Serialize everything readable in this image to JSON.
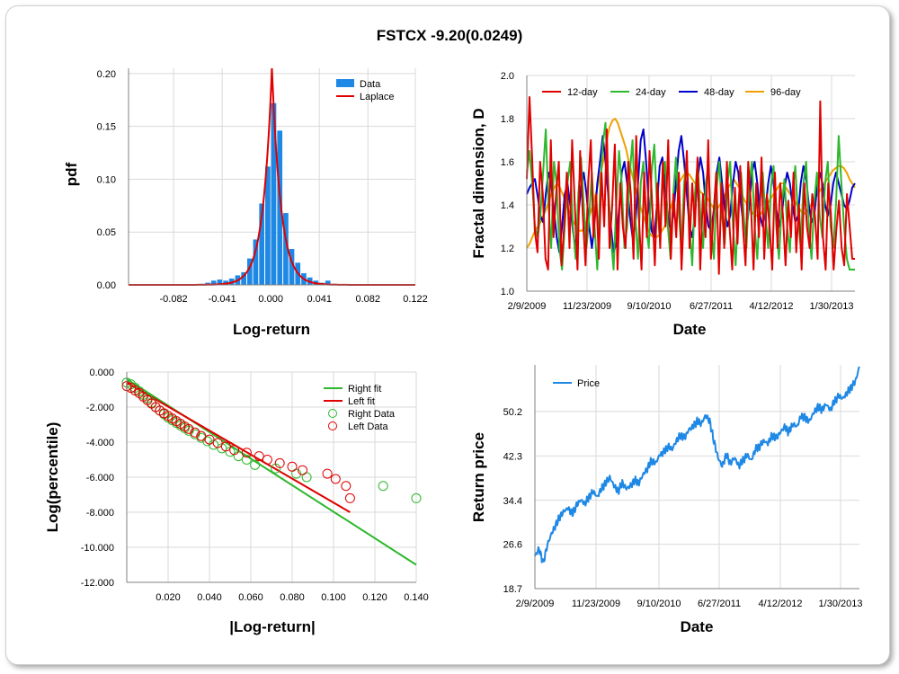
{
  "title": "FSTCX -9.20(0.0249)",
  "colors": {
    "bar": "#1e88e5",
    "laplace": "#e00000",
    "green": "#2db82d",
    "red": "#e00000",
    "blue": "#0000cc",
    "orange": "#f0a000",
    "price": "#1e88e5",
    "grid": "#d9d9d9",
    "axis": "#808080"
  },
  "chart_data": [
    {
      "type": "bar",
      "name": "histogram",
      "xlabel": "Log-return",
      "ylabel": "pdf",
      "xlim": [
        -0.12,
        0.122
      ],
      "ylim": [
        0,
        0.205
      ],
      "xticks": [
        -0.082,
        -0.041,
        0.0,
        0.041,
        0.082,
        0.122
      ],
      "xtick_labels": [
        "-0.082",
        "-0.041",
        "0.000",
        "0.041",
        "0.082",
        "0.122"
      ],
      "yticks": [
        0,
        0.05,
        0.1,
        0.15,
        0.2
      ],
      "ytick_labels": [
        "0.00",
        "0.05",
        "0.10",
        "0.15",
        "0.20"
      ],
      "legend": [
        "Data",
        "Laplace"
      ],
      "bin_width": 0.00507,
      "bins": [
        {
          "x": -0.0583,
          "y": 0.001
        },
        {
          "x": -0.0532,
          "y": 0.002
        },
        {
          "x": -0.0482,
          "y": 0.004
        },
        {
          "x": -0.0431,
          "y": 0.005
        },
        {
          "x": -0.038,
          "y": 0.004
        },
        {
          "x": -0.033,
          "y": 0.006
        },
        {
          "x": -0.0279,
          "y": 0.009
        },
        {
          "x": -0.0228,
          "y": 0.012
        },
        {
          "x": -0.0177,
          "y": 0.025
        },
        {
          "x": -0.0127,
          "y": 0.043
        },
        {
          "x": -0.0076,
          "y": 0.077
        },
        {
          "x": -0.0025,
          "y": 0.112
        },
        {
          "x": 0.0025,
          "y": 0.172
        },
        {
          "x": 0.0076,
          "y": 0.146
        },
        {
          "x": 0.0127,
          "y": 0.068
        },
        {
          "x": 0.0177,
          "y": 0.034
        },
        {
          "x": 0.0228,
          "y": 0.021
        },
        {
          "x": 0.0279,
          "y": 0.011
        },
        {
          "x": 0.033,
          "y": 0.007
        },
        {
          "x": 0.038,
          "y": 0.004
        },
        {
          "x": 0.0431,
          "y": 0.002
        },
        {
          "x": 0.0482,
          "y": 0.004
        },
        {
          "x": 0.0532,
          "y": 0.001
        }
      ],
      "laplace": {
        "mu": 0.001,
        "b": 0.0075,
        "peak": 0.205
      }
    },
    {
      "type": "line",
      "name": "fractal",
      "xlabel": "Date",
      "ylabel": "Fractal dimension, D",
      "ylim": [
        1.0,
        2.0
      ],
      "yticks": [
        1.0,
        1.2,
        1.4,
        1.6,
        1.8,
        2.0
      ],
      "ytick_labels": [
        "1.0",
        "1.2",
        "1.4",
        "1.6",
        "1.8",
        "2.0"
      ],
      "xtick_labels": [
        "2/9/2009",
        "11/23/2009",
        "9/10/2010",
        "6/27/2011",
        "4/12/2012",
        "1/30/2013"
      ],
      "series": [
        {
          "name": "12-day",
          "color": "#e00000",
          "values": [
            1.52,
            1.9,
            1.62,
            1.28,
            1.18,
            1.6,
            1.45,
            1.15,
            1.1,
            1.7,
            1.25,
            1.45,
            1.6,
            1.12,
            1.3,
            1.55,
            1.2,
            1.7,
            1.4,
            1.1,
            1.65,
            1.35,
            1.12,
            1.5,
            1.7,
            1.25,
            1.45,
            1.15,
            1.55,
            1.3,
            1.75,
            1.2,
            1.4,
            1.68,
            1.1,
            1.5,
            1.3,
            1.2,
            1.6,
            1.45,
            1.15,
            1.72,
            1.35,
            1.1,
            1.55,
            1.25,
            1.65,
            1.4,
            1.12,
            1.5,
            1.2,
            1.6,
            1.3,
            1.7,
            1.15,
            1.45,
            1.25,
            1.55,
            1.1,
            1.4,
            1.65,
            1.2,
            1.5,
            1.3,
            1.62,
            1.1,
            1.45,
            1.25,
            1.7,
            1.15,
            1.35,
            1.55,
            1.08,
            1.5,
            1.2,
            1.6,
            1.3,
            1.1,
            1.48,
            1.22,
            1.58,
            1.3,
            1.12,
            1.6,
            1.4,
            1.1,
            1.5,
            1.25,
            1.62,
            1.15,
            1.45,
            1.3,
            1.1,
            1.55,
            1.2,
            1.5,
            1.35,
            1.12,
            1.42,
            1.25,
            1.55,
            1.18,
            1.4,
            1.1,
            1.5,
            1.3,
            1.2,
            1.45,
            1.35,
            1.15,
            1.88,
            1.25,
            1.1,
            1.5,
            1.35,
            1.1,
            1.28,
            1.42,
            1.2,
            1.12,
            1.45,
            1.3,
            1.15,
            1.15
          ]
        },
        {
          "name": "24-day",
          "color": "#2db82d",
          "values": [
            1.55,
            1.65,
            1.5,
            1.3,
            1.25,
            1.35,
            1.55,
            1.75,
            1.4,
            1.2,
            1.6,
            1.5,
            1.2,
            1.1,
            1.3,
            1.5,
            1.6,
            1.3,
            1.15,
            1.45,
            1.62,
            1.4,
            1.2,
            1.35,
            1.55,
            1.3,
            1.1,
            1.45,
            1.68,
            1.78,
            1.5,
            1.25,
            1.1,
            1.4,
            1.65,
            1.5,
            1.2,
            1.3,
            1.55,
            1.7,
            1.35,
            1.15,
            1.5,
            1.6,
            1.3,
            1.2,
            1.55,
            1.68,
            1.4,
            1.25,
            1.5,
            1.6,
            1.3,
            1.15,
            1.45,
            1.62,
            1.38,
            1.2,
            1.5,
            1.62,
            1.3,
            1.12,
            1.45,
            1.6,
            1.35,
            1.2,
            1.5,
            1.58,
            1.3,
            1.15,
            1.48,
            1.6,
            1.35,
            1.22,
            1.5,
            1.6,
            1.3,
            1.12,
            1.4,
            1.55,
            1.35,
            1.2,
            1.5,
            1.6,
            1.3,
            1.15,
            1.42,
            1.55,
            1.35,
            1.2,
            1.48,
            1.58,
            1.3,
            1.15,
            1.4,
            1.52,
            1.3,
            1.18,
            1.45,
            1.58,
            1.35,
            1.2,
            1.5,
            1.6,
            1.3,
            1.15,
            1.42,
            1.55,
            1.35,
            1.25,
            1.5,
            1.6,
            1.3,
            1.2,
            1.4,
            1.72,
            1.5,
            1.3,
            1.15,
            1.1,
            1.1,
            1.1
          ]
        },
        {
          "name": "48-day",
          "color": "#0000cc",
          "values": [
            1.45,
            1.48,
            1.5,
            1.52,
            1.44,
            1.35,
            1.32,
            1.45,
            1.55,
            1.5,
            1.38,
            1.25,
            1.18,
            1.3,
            1.45,
            1.5,
            1.4,
            1.28,
            1.2,
            1.35,
            1.48,
            1.55,
            1.45,
            1.3,
            1.2,
            1.32,
            1.5,
            1.6,
            1.72,
            1.6,
            1.45,
            1.3,
            1.18,
            1.22,
            1.38,
            1.55,
            1.6,
            1.5,
            1.35,
            1.25,
            1.3,
            1.5,
            1.7,
            1.75,
            1.6,
            1.4,
            1.28,
            1.25,
            1.4,
            1.58,
            1.62,
            1.5,
            1.35,
            1.28,
            1.35,
            1.5,
            1.65,
            1.72,
            1.6,
            1.45,
            1.3,
            1.25,
            1.35,
            1.52,
            1.62,
            1.55,
            1.4,
            1.3,
            1.28,
            1.38,
            1.55,
            1.62,
            1.5,
            1.38,
            1.3,
            1.35,
            1.5,
            1.6,
            1.55,
            1.4,
            1.3,
            1.28,
            1.4,
            1.55,
            1.6,
            1.5,
            1.35,
            1.3,
            1.38,
            1.5,
            1.58,
            1.5,
            1.38,
            1.3,
            1.35,
            1.48,
            1.55,
            1.5,
            1.4,
            1.32,
            1.35,
            1.5,
            1.58,
            1.52,
            1.4,
            1.32,
            1.35,
            1.48,
            1.55,
            1.5,
            1.4,
            1.35,
            1.4,
            1.5,
            1.55,
            1.5,
            1.45,
            1.4,
            1.38,
            1.42,
            1.48,
            1.5
          ]
        },
        {
          "name": "96-day",
          "color": "#f0a000",
          "values": [
            1.2,
            1.22,
            1.25,
            1.28,
            1.3,
            1.32,
            1.35,
            1.38,
            1.42,
            1.45,
            1.48,
            1.5,
            1.48,
            1.45,
            1.42,
            1.38,
            1.35,
            1.32,
            1.3,
            1.28,
            1.28,
            1.3,
            1.33,
            1.36,
            1.4,
            1.45,
            1.5,
            1.56,
            1.62,
            1.7,
            1.76,
            1.79,
            1.8,
            1.78,
            1.74,
            1.7,
            1.66,
            1.6,
            1.55,
            1.5,
            1.45,
            1.4,
            1.36,
            1.32,
            1.28,
            1.26,
            1.25,
            1.25,
            1.26,
            1.28,
            1.3,
            1.34,
            1.38,
            1.42,
            1.46,
            1.5,
            1.52,
            1.54,
            1.55,
            1.54,
            1.52,
            1.5,
            1.48,
            1.46,
            1.45,
            1.44,
            1.42,
            1.4,
            1.38,
            1.38,
            1.4,
            1.42,
            1.45,
            1.48,
            1.5,
            1.52,
            1.5,
            1.48,
            1.45,
            1.42,
            1.4,
            1.38,
            1.36,
            1.35,
            1.35,
            1.36,
            1.38,
            1.4,
            1.42,
            1.44,
            1.46,
            1.48,
            1.5,
            1.5,
            1.48,
            1.46,
            1.44,
            1.42,
            1.4,
            1.38,
            1.36,
            1.36,
            1.38,
            1.4,
            1.42,
            1.44,
            1.46,
            1.48,
            1.5,
            1.52,
            1.54,
            1.56,
            1.57,
            1.58,
            1.58,
            1.57,
            1.55,
            1.52,
            1.5,
            1.48
          ]
        }
      ]
    },
    {
      "type": "scatter",
      "name": "tails",
      "xlabel": "|Log-return|",
      "ylabel": "Log(percentile)",
      "xlim": [
        0.0,
        0.14
      ],
      "ylim": [
        -12.0,
        0.0
      ],
      "xticks": [
        0.02,
        0.04,
        0.06,
        0.08,
        0.1,
        0.12,
        0.14
      ],
      "xtick_labels": [
        "0.020",
        "0.040",
        "0.060",
        "0.080",
        "0.100",
        "0.120",
        "0.140"
      ],
      "yticks": [
        0,
        -2,
        -4,
        -6,
        -8,
        -10,
        -12
      ],
      "ytick_labels": [
        "0.000",
        "-2.000",
        "-4.000",
        "-6.000",
        "-8.000",
        "-10.000",
        "-12.000"
      ],
      "legend": [
        "Right fit",
        "Left fit",
        "Right Data",
        "Left Data"
      ],
      "right_fit": [
        [
          0.0,
          -0.4
        ],
        [
          0.14,
          -11.0
        ]
      ],
      "left_fit": [
        [
          0.0,
          -0.6
        ],
        [
          0.108,
          -8.0
        ]
      ],
      "right_data": [
        [
          0.0,
          -0.6
        ],
        [
          0.002,
          -0.7
        ],
        [
          0.004,
          -0.9
        ],
        [
          0.006,
          -1.1
        ],
        [
          0.008,
          -1.3
        ],
        [
          0.01,
          -1.5
        ],
        [
          0.012,
          -1.75
        ],
        [
          0.014,
          -2.0
        ],
        [
          0.016,
          -2.2
        ],
        [
          0.018,
          -2.4
        ],
        [
          0.02,
          -2.6
        ],
        [
          0.022,
          -2.75
        ],
        [
          0.024,
          -2.9
        ],
        [
          0.026,
          -3.05
        ],
        [
          0.028,
          -3.2
        ],
        [
          0.03,
          -3.35
        ],
        [
          0.033,
          -3.55
        ],
        [
          0.036,
          -3.75
        ],
        [
          0.039,
          -3.95
        ],
        [
          0.042,
          -4.15
        ],
        [
          0.046,
          -4.35
        ],
        [
          0.05,
          -4.55
        ],
        [
          0.054,
          -4.8
        ],
        [
          0.058,
          -5.0
        ],
        [
          0.062,
          -5.3
        ],
        [
          0.072,
          -5.5
        ],
        [
          0.082,
          -5.8
        ],
        [
          0.087,
          -6.0
        ],
        [
          0.124,
          -6.5
        ],
        [
          0.14,
          -7.2
        ]
      ],
      "left_data": [
        [
          0.0,
          -0.8
        ],
        [
          0.002,
          -0.9
        ],
        [
          0.004,
          -1.05
        ],
        [
          0.006,
          -1.2
        ],
        [
          0.008,
          -1.4
        ],
        [
          0.01,
          -1.6
        ],
        [
          0.012,
          -1.8
        ],
        [
          0.014,
          -2.0
        ],
        [
          0.016,
          -2.2
        ],
        [
          0.018,
          -2.35
        ],
        [
          0.02,
          -2.5
        ],
        [
          0.022,
          -2.65
        ],
        [
          0.024,
          -2.8
        ],
        [
          0.026,
          -2.95
        ],
        [
          0.028,
          -3.1
        ],
        [
          0.03,
          -3.25
        ],
        [
          0.033,
          -3.45
        ],
        [
          0.036,
          -3.65
        ],
        [
          0.04,
          -3.85
        ],
        [
          0.044,
          -4.05
        ],
        [
          0.048,
          -4.25
        ],
        [
          0.052,
          -4.45
        ],
        [
          0.058,
          -4.6
        ],
        [
          0.064,
          -4.8
        ],
        [
          0.068,
          -5.0
        ],
        [
          0.074,
          -5.2
        ],
        [
          0.08,
          -5.4
        ],
        [
          0.085,
          -5.6
        ],
        [
          0.097,
          -5.8
        ],
        [
          0.101,
          -6.1
        ],
        [
          0.106,
          -6.5
        ],
        [
          0.108,
          -7.2
        ]
      ]
    },
    {
      "type": "line",
      "name": "price",
      "xlabel": "Date",
      "ylabel": "Return price",
      "ylim": [
        18.7,
        58.5
      ],
      "yticks": [
        18.7,
        26.6,
        34.4,
        42.3,
        50.2
      ],
      "ytick_labels": [
        "18.7",
        "26.6",
        "34.4",
        "42.3",
        "50.2"
      ],
      "xtick_labels": [
        "2/9/2009",
        "11/23/2009",
        "9/10/2010",
        "6/27/2011",
        "4/12/2012",
        "1/30/2013"
      ],
      "legend": [
        "Price"
      ],
      "series": [
        {
          "name": "Price",
          "values": [
            24.5,
            25.8,
            23.2,
            26.5,
            28.5,
            30.0,
            31.5,
            32.5,
            33.0,
            32.0,
            33.5,
            34.5,
            33.8,
            35.0,
            36.0,
            35.0,
            36.5,
            37.5,
            38.5,
            37.0,
            36.0,
            37.5,
            36.5,
            37.0,
            38.0,
            37.5,
            39.0,
            40.0,
            41.5,
            41.0,
            42.5,
            43.0,
            44.0,
            43.5,
            45.0,
            46.0,
            45.5,
            47.0,
            47.5,
            48.5,
            48.0,
            49.5,
            48.5,
            45.0,
            42.0,
            40.5,
            42.5,
            41.0,
            42.0,
            40.5,
            41.5,
            42.5,
            41.5,
            43.5,
            44.0,
            45.0,
            44.5,
            46.0,
            45.5,
            46.5,
            47.5,
            46.5,
            48.0,
            47.5,
            49.5,
            49.0,
            48.5,
            50.0,
            51.0,
            50.5,
            51.5,
            50.5,
            52.0,
            53.0,
            52.5,
            53.5,
            54.5,
            55.5,
            58.2
          ]
        }
      ]
    }
  ]
}
